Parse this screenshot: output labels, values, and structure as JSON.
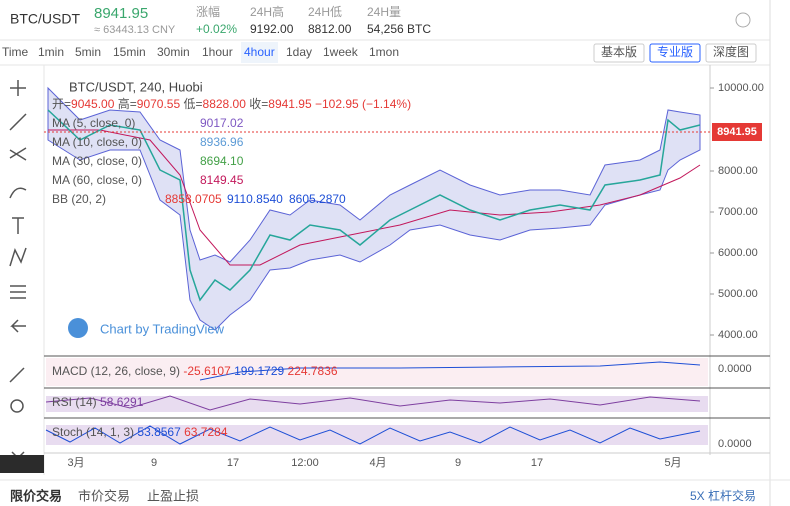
{
  "header": {
    "symbol": "BTC/USDT",
    "price": "8941.95",
    "cny": "≈ 63443.13 CNY",
    "stats": [
      {
        "label": "涨幅",
        "value": "+0.02%"
      },
      {
        "label": "24H高",
        "value": "9192.00"
      },
      {
        "label": "24H低",
        "value": "8812.00"
      },
      {
        "label": "24H量",
        "value": "54,256 BTC"
      }
    ]
  },
  "toolbar": {
    "intervals": [
      "Time",
      "1min",
      "5min",
      "15min",
      "30min",
      "1hour",
      "4hour",
      "1day",
      "1week",
      "1mon"
    ],
    "active": "4hour",
    "views": [
      "基本版",
      "专业版",
      "深度图"
    ],
    "active_view": "专业版"
  },
  "chart": {
    "title": "BTC/USDT, 240, Huobi",
    "ohlc": [
      {
        "label": "开=",
        "value": "9045.00"
      },
      {
        "label": "高=",
        "value": "9070.55"
      },
      {
        "label": "低=",
        "value": "8828.00"
      },
      {
        "label": "收=",
        "value": "8941.95"
      }
    ],
    "change": "−102.95 (−1.14%)",
    "indicators": [
      {
        "name": "MA (5, close, 0)",
        "values": [
          {
            "text": "9017.02",
            "color": "#7e57c2"
          }
        ]
      },
      {
        "name": "MA (10, close, 0)",
        "values": [
          {
            "text": "8936.96",
            "color": "#5c9bd6"
          }
        ]
      },
      {
        "name": "MA (30, close, 0)",
        "values": [
          {
            "text": "8694.10",
            "color": "#43a047"
          }
        ]
      },
      {
        "name": "MA (60, close, 0)",
        "values": [
          {
            "text": "8149.45",
            "color": "#c2185b"
          }
        ]
      },
      {
        "name": "BB (20, 2)",
        "values": [
          {
            "text": "8858.0705",
            "color": "#e53935"
          },
          {
            "text": "9110.8540",
            "color": "#1e4fd6"
          },
          {
            "text": "8605.2870",
            "color": "#1e4fd6"
          }
        ]
      }
    ],
    "price_axis": [
      "10000.00",
      "8000.00",
      "7000.00",
      "6000.00",
      "5000.00",
      "4000.00"
    ],
    "last_price": "8941.95",
    "watermark": "Chart by TradingView",
    "panes": [
      {
        "name": "MACD (12, 26, close, 9)",
        "values": [
          {
            "text": "-25.6107",
            "color": "#e53935"
          },
          {
            "text": "199.1729",
            "color": "#1e4fd6"
          },
          {
            "text": "224.7836",
            "color": "#e53935"
          }
        ],
        "axis": "0.0000"
      },
      {
        "name": "RSI (14)",
        "values": [
          {
            "text": "58.6291",
            "color": "#7e3fa0"
          }
        ]
      },
      {
        "name": "Stoch (14, 1, 3)",
        "values": [
          {
            "text": "53.8567",
            "color": "#1e4fd6"
          },
          {
            "text": "63.7284",
            "color": "#e53935"
          }
        ],
        "axis": "0.0000"
      }
    ],
    "time_axis": [
      "3月",
      "9",
      "17",
      "12:00",
      "4月",
      "9",
      "17",
      "5月"
    ]
  },
  "footer": {
    "tabs": [
      "限价交易",
      "市价交易",
      "止盈止损"
    ],
    "leverage": "5X 杠杆交易"
  }
}
